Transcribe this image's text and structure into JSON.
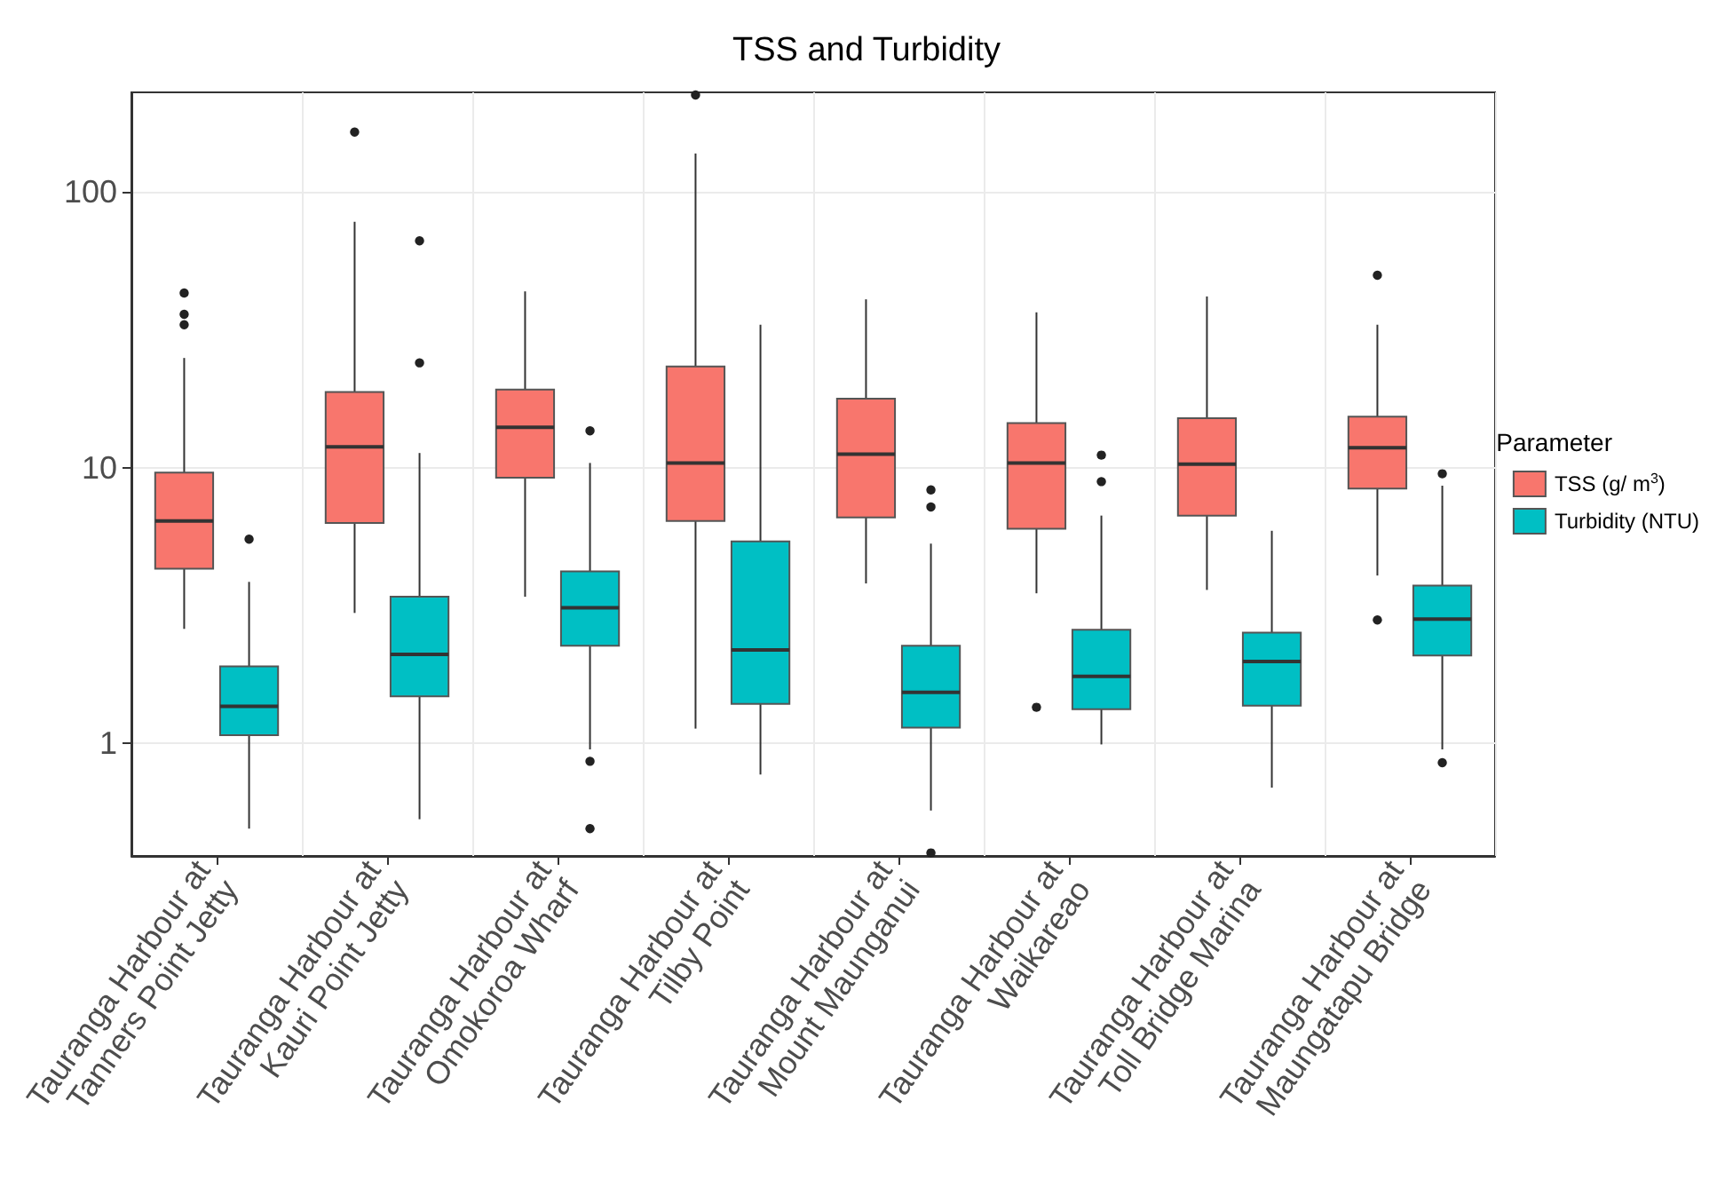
{
  "chart_data": {
    "type": "box",
    "title": "TSS and Turbidity",
    "legend_title": "Parameter",
    "legend": "right",
    "grid": true,
    "log": "y",
    "ylim": [
      0.39,
      230
    ],
    "yticks": [
      1,
      10,
      100
    ],
    "categories": [
      "Tauranga Harbour at\nTanners Point Jetty",
      "Tauranga Harbour at\nKauri Point Jetty",
      "Tauranga Harbour at\nOmokoroa Wharf",
      "Tauranga Harbour at\nTilby Point",
      "Tauranga Harbour at\nMount Maunganui",
      "Tauranga Harbour at\nWaikareao",
      "Tauranga Harbour at\nToll Bridge Marina",
      "Tauranga Harbour at\nMaungatapu Bridge"
    ],
    "series": [
      {
        "name": "TSS (g/ m$^{3}$)",
        "color": "#f8766d",
        "boxes": [
          {
            "low": 2.6,
            "q1": 4.3,
            "median": 6.4,
            "q3": 9.6,
            "high": 25,
            "outliers": [
              43,
              36,
              33
            ]
          },
          {
            "low": 2.97,
            "q1": 6.3,
            "median": 11.9,
            "q3": 18.8,
            "high": 78,
            "outliers": [
              165
            ]
          },
          {
            "low": 3.4,
            "q1": 9.2,
            "median": 14,
            "q3": 19.2,
            "high": 43.6
          },
          {
            "low": 1.13,
            "q1": 6.4,
            "median": 10.4,
            "q3": 23.3,
            "high": 138,
            "outliers": [
              225
            ]
          },
          {
            "low": 3.8,
            "q1": 6.6,
            "median": 11.2,
            "q3": 17.8,
            "high": 40.8
          },
          {
            "low": 3.5,
            "q1": 6,
            "median": 10.4,
            "q3": 14.5,
            "high": 36.6,
            "outliers": [
              1.35
            ]
          },
          {
            "low": 3.6,
            "q1": 6.7,
            "median": 10.3,
            "q3": 15.1,
            "high": 41.8
          },
          {
            "low": 4.06,
            "q1": 8.4,
            "median": 11.8,
            "q3": 15.3,
            "high": 33,
            "outliers": [
              49.9,
              2.8
            ]
          }
        ]
      },
      {
        "name": "Turbidity (NTU)",
        "color": "#00bfc4",
        "boxes": [
          {
            "low": 0.49,
            "q1": 1.07,
            "median": 1.36,
            "q3": 1.9,
            "high": 3.85,
            "outliers": [
              5.5
            ]
          },
          {
            "low": 0.53,
            "q1": 1.48,
            "median": 2.1,
            "q3": 3.4,
            "high": 11.3,
            "outliers": [
              66.5,
              24
            ]
          },
          {
            "low": 0.95,
            "q1": 2.26,
            "median": 3.1,
            "q3": 4.2,
            "high": 10.4,
            "outliers": [
              13.6,
              0.86,
              0.49
            ]
          },
          {
            "low": 0.77,
            "q1": 1.39,
            "median": 2.18,
            "q3": 5.4,
            "high": 33
          },
          {
            "low": 0.57,
            "q1": 1.14,
            "median": 1.53,
            "q3": 2.26,
            "high": 5.3,
            "outliers": [
              8.3,
              7.2,
              0.4
            ]
          },
          {
            "low": 0.99,
            "q1": 1.33,
            "median": 1.75,
            "q3": 2.58,
            "high": 6.7,
            "outliers": [
              11.1,
              8.9
            ]
          },
          {
            "low": 0.69,
            "q1": 1.37,
            "median": 1.98,
            "q3": 2.52,
            "high": 5.9
          },
          {
            "low": 0.95,
            "q1": 2.08,
            "median": 2.82,
            "q3": 3.73,
            "high": 8.6,
            "outliers": [
              9.5,
              0.85
            ]
          }
        ]
      }
    ]
  }
}
